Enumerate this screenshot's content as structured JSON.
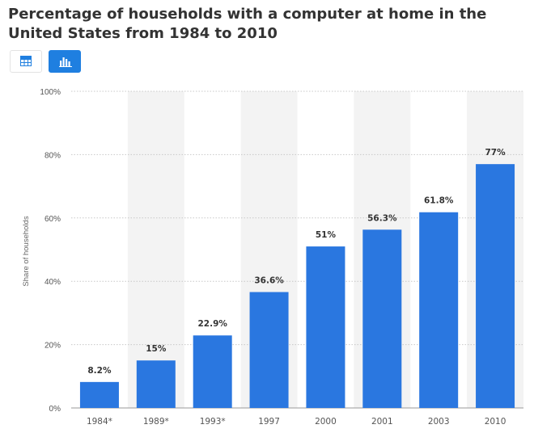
{
  "title": "Percentage of households with a computer at home in the United States from 1984 to 2010",
  "toolbar": {
    "table_icon": "table-icon",
    "chart_icon": "bar-chart-icon",
    "active_color": "#1f7fe0"
  },
  "colors": {
    "bar": "#2a77e0",
    "band": "#f3f3f3",
    "grid": "#c8c8c8",
    "axis_text": "#555555",
    "label_text": "#333333"
  },
  "chart_data": {
    "type": "bar",
    "categories": [
      "1984*",
      "1989*",
      "1993*",
      "1997",
      "2000",
      "2001",
      "2003",
      "2010"
    ],
    "values": [
      8.2,
      15,
      22.9,
      36.6,
      51,
      56.3,
      61.8,
      77
    ],
    "value_labels": [
      "8.2%",
      "15%",
      "22.9%",
      "36.6%",
      "51%",
      "56.3%",
      "61.8%",
      "77%"
    ],
    "yticks": [
      0,
      20,
      40,
      60,
      80,
      100
    ],
    "ytick_labels": [
      "0%",
      "20%",
      "40%",
      "60%",
      "80%",
      "100%"
    ],
    "ylabel": "Share of households",
    "xlabel": "",
    "ylim": [
      0,
      100
    ],
    "grid": true,
    "alternating_bands": true
  }
}
